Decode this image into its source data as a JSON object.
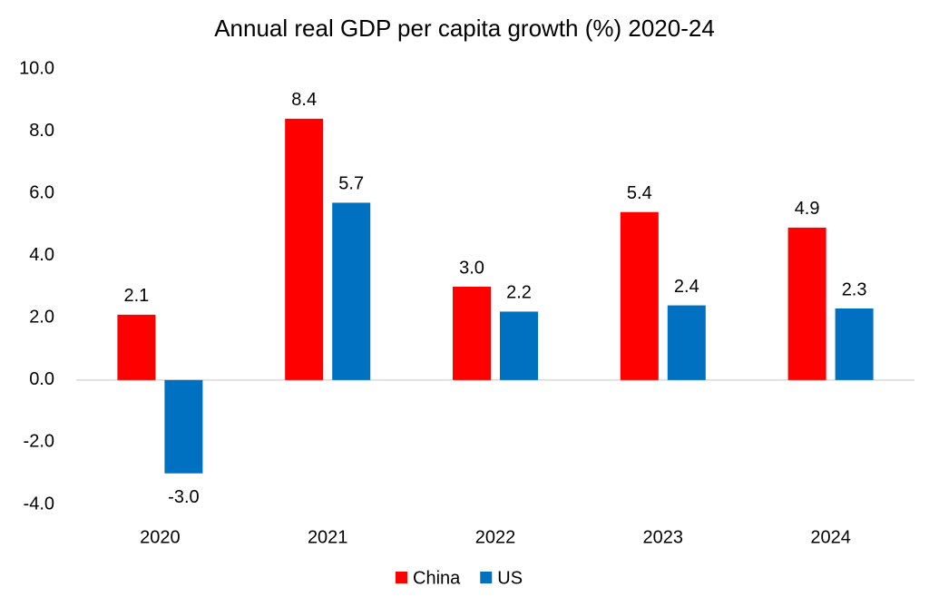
{
  "chart_data": {
    "type": "bar",
    "title": "Annual real GDP per capita growth (%) 2020-24",
    "categories": [
      "2020",
      "2021",
      "2022",
      "2023",
      "2024"
    ],
    "series": [
      {
        "name": "China",
        "color": "#ff0000",
        "values": [
          2.1,
          8.4,
          3.0,
          5.4,
          4.9
        ],
        "value_labels": [
          "2.1",
          "8.4",
          "3.0",
          "5.4",
          "4.9"
        ]
      },
      {
        "name": "US",
        "color": "#0070c0",
        "values": [
          -3.0,
          5.7,
          2.2,
          2.4,
          2.3
        ],
        "value_labels": [
          "-3.0",
          "5.7",
          "2.2",
          "2.4",
          "2.3"
        ]
      }
    ],
    "ylim": [
      -4,
      10
    ],
    "yticks": [
      {
        "value": -4,
        "label": "-4.0"
      },
      {
        "value": -2,
        "label": "-2.0"
      },
      {
        "value": 0,
        "label": "0.0"
      },
      {
        "value": 2,
        "label": "2.0"
      },
      {
        "value": 4,
        "label": "4.0"
      },
      {
        "value": 6,
        "label": "6.0"
      },
      {
        "value": 8,
        "label": "8.0"
      },
      {
        "value": 10,
        "label": "10.0"
      }
    ],
    "grid": false,
    "legend": "bottom"
  }
}
